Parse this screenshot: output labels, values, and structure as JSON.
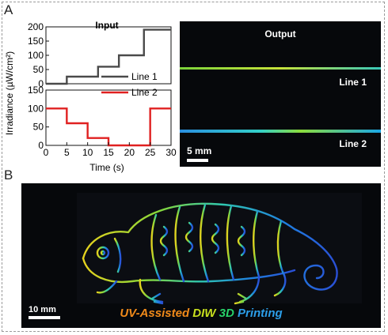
{
  "panel_a": {
    "label": "A",
    "plot": {
      "input_title": "Input",
      "ylabel": "Irradiance (µW/cm²)",
      "xlabel": "Time (s)",
      "legend": [
        "Line 1",
        "Line 2"
      ],
      "colors": {
        "line1": "#4a4a4a",
        "line2": "#e02020"
      }
    },
    "output": {
      "title": "Output",
      "line1_label": "Line 1",
      "line2_label": "Line 2",
      "scale": "5 mm"
    }
  },
  "panel_b": {
    "label": "B",
    "scale": "10 mm",
    "caption_words": [
      "UV-Assisted",
      "DIW",
      "3D",
      "Printing"
    ],
    "caption_colors": [
      "#f08a1a",
      "#c8e01e",
      "#28d26a",
      "#2c9ee8"
    ]
  },
  "chart_data": [
    {
      "type": "line",
      "title": "Input",
      "series": [
        {
          "name": "Line 1",
          "x": [
            0,
            5,
            5,
            12.5,
            12.5,
            17.5,
            17.5,
            23.5,
            23.5,
            30
          ],
          "values": [
            0,
            0,
            25,
            25,
            60,
            60,
            100,
            100,
            190,
            190
          ]
        }
      ],
      "xlim": [
        0,
        30
      ],
      "ylim": [
        0,
        200
      ],
      "yticks": [
        0,
        50,
        100,
        150,
        200
      ]
    },
    {
      "type": "line",
      "series": [
        {
          "name": "Line 2",
          "x": [
            0,
            5,
            5,
            10,
            10,
            15,
            15,
            25,
            25,
            30
          ],
          "values": [
            100,
            100,
            60,
            60,
            20,
            20,
            0,
            0,
            100,
            100
          ]
        }
      ],
      "xlim": [
        0,
        30
      ],
      "ylim": [
        0,
        150
      ],
      "xticks": [
        0,
        5,
        10,
        15,
        20,
        25,
        30
      ],
      "yticks": [
        0,
        50,
        100,
        150
      ],
      "xlabel": "Time (s)",
      "ylabel": "Irradiance (µW/cm²)"
    }
  ]
}
